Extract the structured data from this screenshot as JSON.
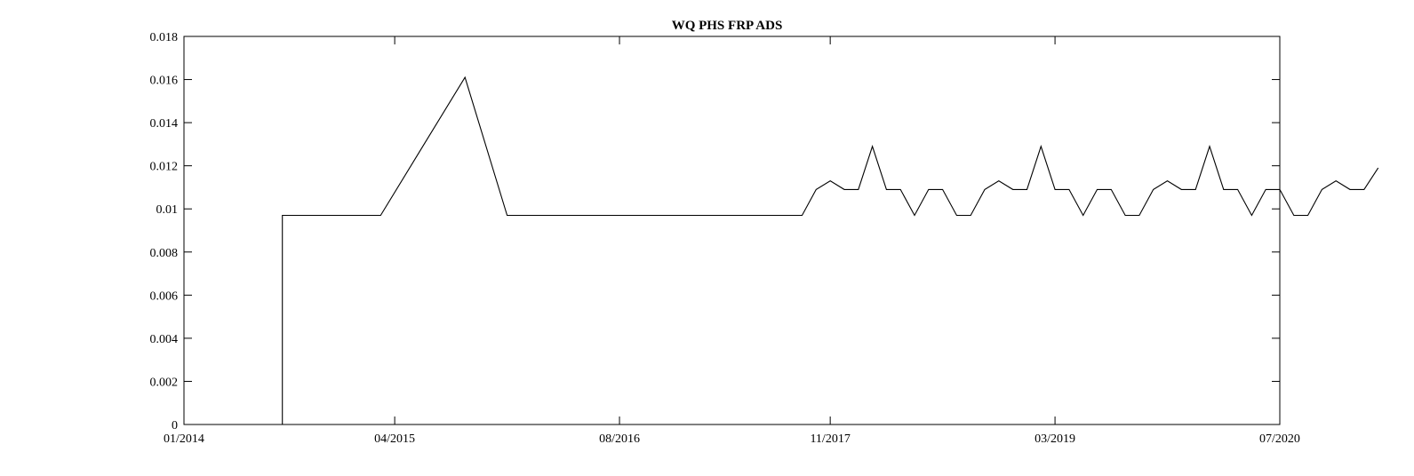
{
  "chart_data": {
    "type": "line",
    "title": "WQ PHS FRP ADS",
    "xlabel": "",
    "ylabel": "",
    "x_tick_labels": [
      "01/2014",
      "04/2015",
      "08/2016",
      "11/2017",
      "03/2019",
      "07/2020"
    ],
    "y_tick_labels": [
      "0",
      "0.002",
      "0.004",
      "0.006",
      "0.008",
      "0.01",
      "0.012",
      "0.014",
      "0.016",
      "0.018"
    ],
    "ylim": [
      0,
      0.018
    ],
    "xlim": [
      "01/2014",
      "07/2020"
    ],
    "grid": false,
    "line_color": "#000000",
    "series": [
      {
        "x": [
          "01/2014",
          "08/2014",
          "08/2014",
          "03/2015",
          "04/2015",
          "06/2015",
          "10/2015",
          "02/2016",
          "02/2016",
          "11/2016",
          "03/2017",
          "12/2017",
          "12/2017",
          "05/2018",
          "06/2018",
          "10/2018",
          "02/2019",
          "09/2019",
          "11/2019",
          "01/2020",
          "03/2020",
          "07/2020"
        ],
        "y": [
          0,
          0,
          0.0097,
          0.0097,
          0.0113,
          0.0129,
          0.0161,
          0.0097,
          0.0097,
          0.0097,
          0.0097,
          0.0097,
          0.0097,
          0.0097,
          0.0097,
          0.0097,
          0.0097,
          0.0097,
          0.0097,
          0.0097,
          0.0097,
          0.0119
        ],
        "points": [
          [
            "2014-01",
            0
          ],
          [
            "2014-08",
            0
          ],
          [
            "2014-08",
            0.0097
          ],
          [
            "2015-03",
            0.0097
          ],
          [
            "2015-06",
            0.0129
          ],
          [
            "2015-09",
            0.0161
          ],
          [
            "2015-12",
            0.0097
          ],
          [
            "2017-09",
            0.0097
          ],
          [
            "2017-10",
            0.0109
          ],
          [
            "2017-11",
            0.0113
          ],
          [
            "2017-12",
            0.0109
          ],
          [
            "2018-01",
            0.0109
          ],
          [
            "2018-02",
            0.0129
          ],
          [
            "2018-03",
            0.0109
          ],
          [
            "2018-04",
            0.0109
          ],
          [
            "2018-05",
            0.0097
          ],
          [
            "2018-06",
            0.0109
          ],
          [
            "2018-07",
            0.0109
          ],
          [
            "2018-08",
            0.0097
          ],
          [
            "2018-09",
            0.0097
          ],
          [
            "2018-10",
            0.0109
          ],
          [
            "2018-11",
            0.0113
          ],
          [
            "2018-12",
            0.0109
          ],
          [
            "2019-01",
            0.0109
          ],
          [
            "2019-02",
            0.0129
          ],
          [
            "2019-03",
            0.0109
          ],
          [
            "2019-04",
            0.0109
          ],
          [
            "2019-05",
            0.0097
          ],
          [
            "2019-06",
            0.0109
          ],
          [
            "2019-07",
            0.0109
          ],
          [
            "2019-08",
            0.0097
          ],
          [
            "2019-09",
            0.0097
          ],
          [
            "2019-10",
            0.0109
          ],
          [
            "2019-11",
            0.0113
          ],
          [
            "2019-12",
            0.0109
          ],
          [
            "2020-01",
            0.0109
          ],
          [
            "2020-02",
            0.0129
          ],
          [
            "2020-03",
            0.0109
          ],
          [
            "2020-04",
            0.0109
          ],
          [
            "2020-05",
            0.0097
          ],
          [
            "2020-06",
            0.0109
          ],
          [
            "2020-07",
            0.0109
          ],
          [
            "2020-08",
            0.0097
          ],
          [
            "2020-09",
            0.0097
          ],
          [
            "2020-10",
            0.0109
          ],
          [
            "2020-11",
            0.0113
          ],
          [
            "2020-12",
            0.0109
          ],
          [
            "2021-01",
            0.0109
          ],
          [
            "2021-02",
            0.0119
          ]
        ]
      }
    ]
  }
}
